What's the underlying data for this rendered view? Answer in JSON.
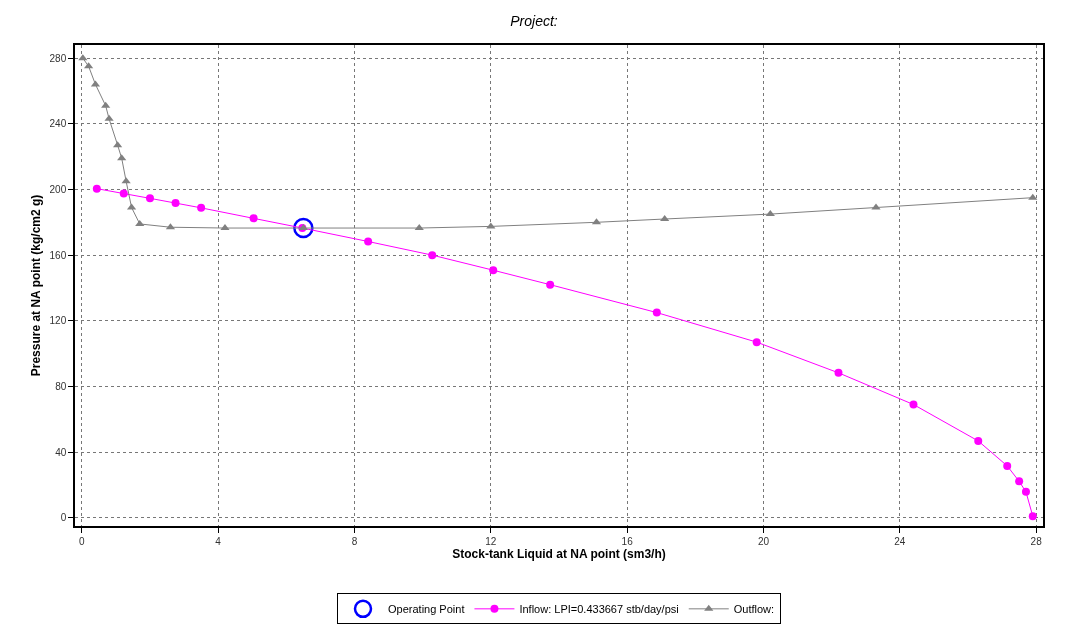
{
  "chart_data": {
    "type": "line",
    "title": "Project:",
    "xlabel": "Stock-tank Liquid at NA point (sm3/h)",
    "ylabel": "Pressure at NA point (kg/cm2 g)",
    "xlim": [
      -0.2,
      28.2
    ],
    "ylim": [
      -5,
      288
    ],
    "xticks": [
      0,
      4,
      8,
      12,
      16,
      20,
      24,
      28
    ],
    "yticks": [
      0,
      40,
      80,
      120,
      160,
      200,
      240,
      280
    ],
    "grid": true,
    "legend": "bottom",
    "series": [
      {
        "name": "Operating Point",
        "type": "scatter",
        "marker": "circle",
        "color": "#0000ff",
        "x": [
          6.5
        ],
        "values": [
          176.5
        ]
      },
      {
        "name": "Inflow: LPI=0.433667 stb/day/psi",
        "marker": "circle",
        "color": "#ff00ff",
        "x": [
          0.44,
          1.23,
          2.0,
          2.75,
          3.5,
          5.04,
          6.47,
          8.4,
          10.28,
          12.07,
          13.74,
          16.87,
          19.8,
          22.2,
          24.4,
          26.3,
          27.15,
          27.5,
          27.7,
          27.9
        ],
        "values": [
          200.5,
          197.5,
          194.6,
          191.7,
          188.8,
          182.4,
          176.5,
          168.3,
          160,
          150.8,
          142,
          125,
          107,
          88.3,
          69,
          46.8,
          31.6,
          22.2,
          15.8,
          1
        ]
      },
      {
        "name": "Outflow:",
        "marker": "triangle",
        "color": "#808080",
        "x": [
          0.03,
          0.2,
          0.4,
          0.7,
          0.8,
          1.05,
          1.17,
          1.3,
          1.46,
          1.7,
          2.6,
          4.2,
          6.5,
          9.9,
          12.0,
          15.1,
          17.1,
          20.2,
          23.3,
          27.9
        ],
        "values": [
          280,
          275,
          264,
          251,
          243,
          227,
          219,
          205,
          189,
          179,
          177,
          176.5,
          176.5,
          176.5,
          177.5,
          180,
          182,
          185,
          189,
          195
        ]
      }
    ]
  }
}
